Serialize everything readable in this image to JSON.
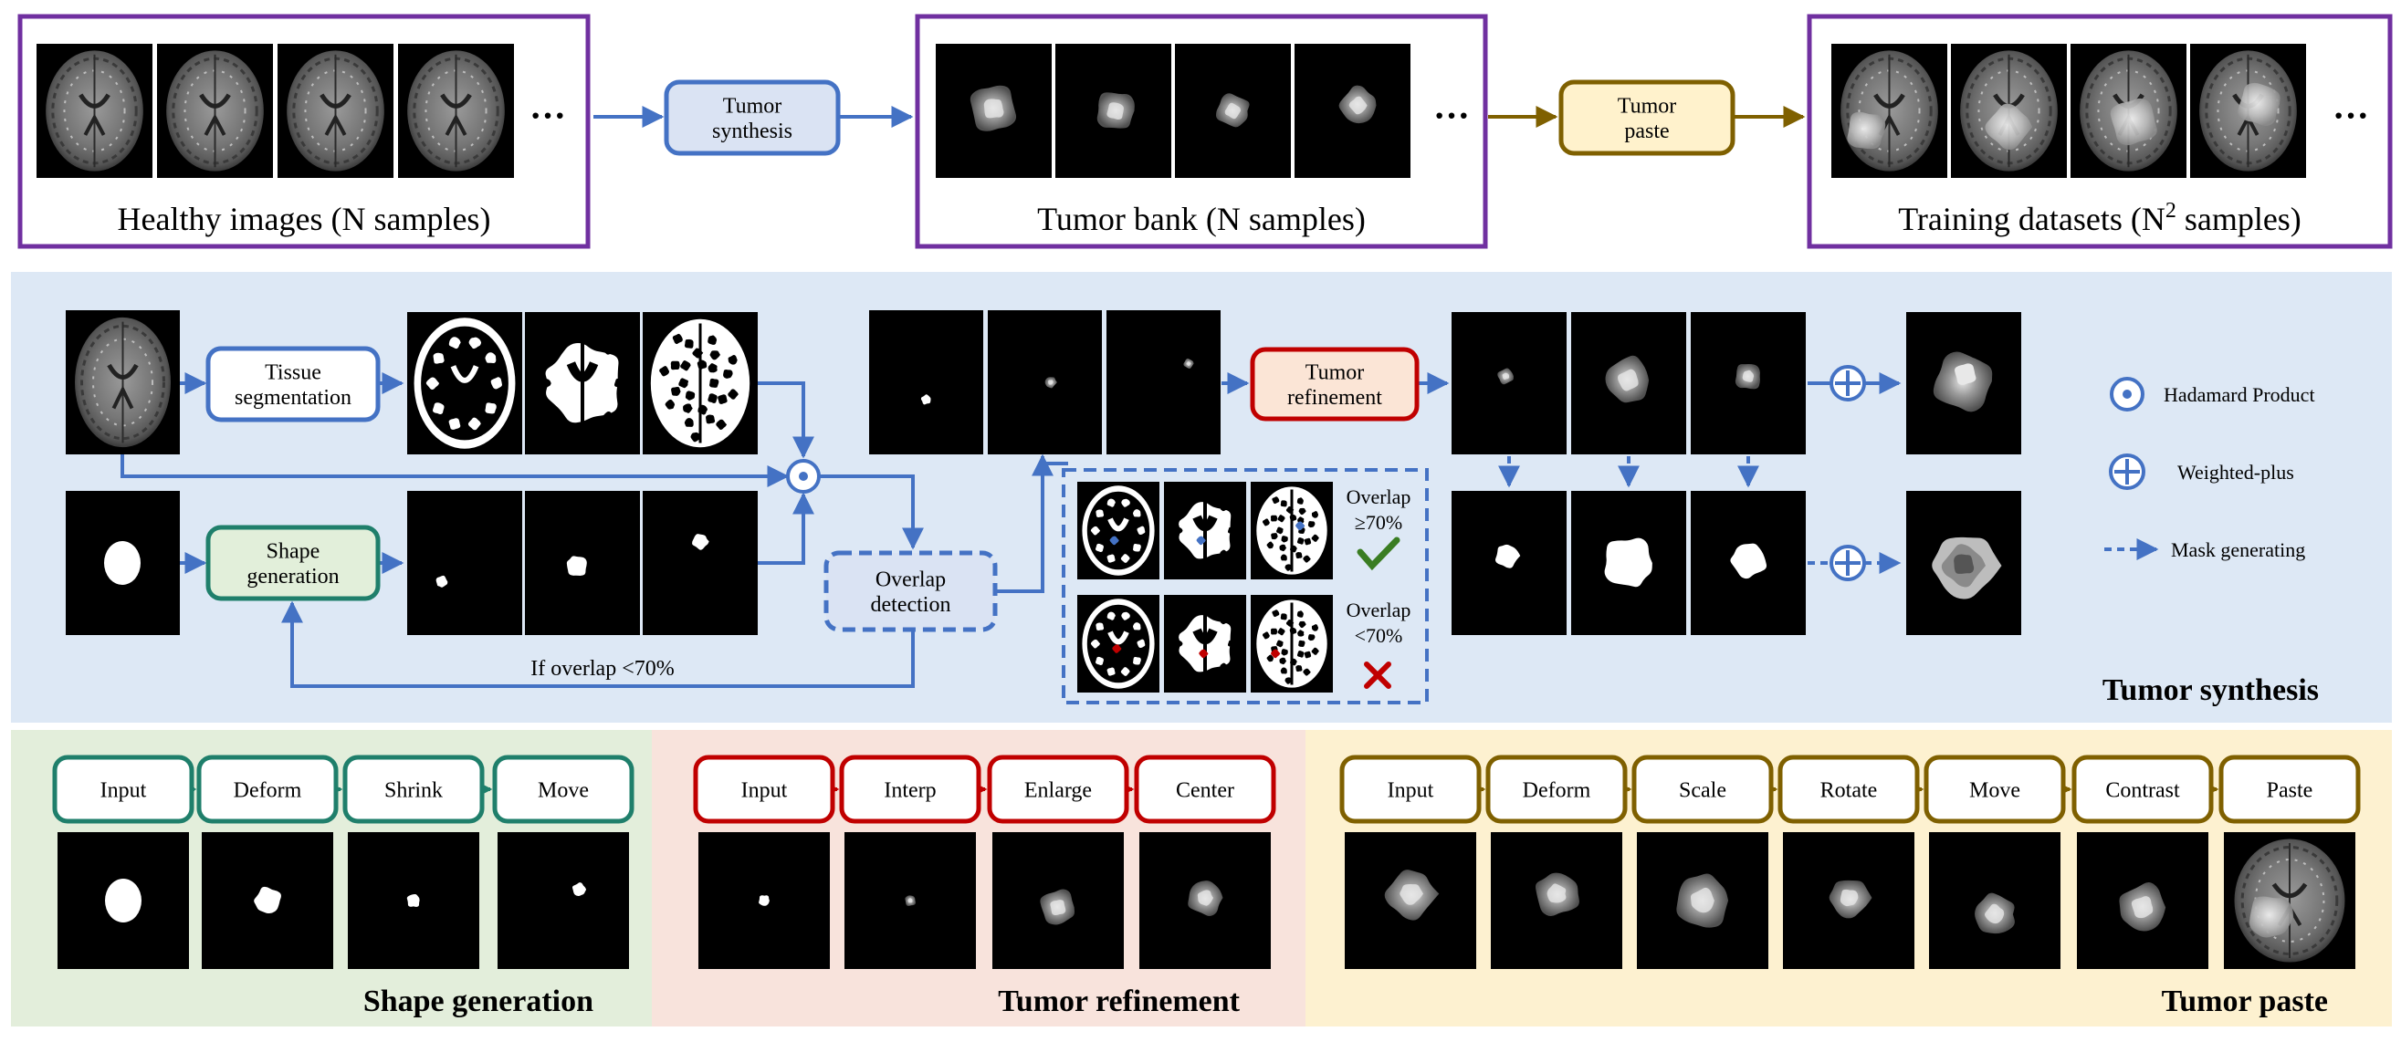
{
  "top": {
    "healthy_caption": "Healthy images (N samples)",
    "tumor_bank_caption": "Tumor bank (N samples)",
    "training_caption_prefix": "Training datasets (N",
    "training_caption_sup": "2",
    "training_caption_suffix": " samples)",
    "tumor_synthesis_box": [
      "Tumor",
      "synthesis"
    ],
    "tumor_paste_box": [
      "Tumor",
      "paste"
    ],
    "ellipsis": "···"
  },
  "synthesis": {
    "tissue_segmentation": [
      "Tissue",
      "segmentation"
    ],
    "shape_generation": [
      "Shape",
      "generation"
    ],
    "overlap_detection": [
      "Overlap",
      "detection"
    ],
    "tumor_refinement": [
      "Tumor",
      "refinement"
    ],
    "overlap_pass": [
      "Overlap",
      "≥70%"
    ],
    "overlap_fail": [
      "Overlap",
      "<70%"
    ],
    "loop_label": "If overlap <70%",
    "section_title": "Tumor synthesis"
  },
  "legend": {
    "hadamard": "Hadamard Product",
    "weighted_plus": "Weighted-plus",
    "mask_generating": "Mask generating"
  },
  "panels": {
    "shape": {
      "title": "Shape generation",
      "steps": [
        "Input",
        "Deform",
        "Shrink",
        "Move"
      ]
    },
    "refine": {
      "title": "Tumor refinement",
      "steps": [
        "Input",
        "Interp",
        "Enlarge",
        "Center"
      ]
    },
    "paste": {
      "title": "Tumor paste",
      "steps": [
        "Input",
        "Deform",
        "Scale",
        "Rotate",
        "Move",
        "Contrast",
        "Paste"
      ]
    }
  },
  "colors": {
    "purple": "#7030a0",
    "blue": "#4472c4",
    "green": "#1f7f6b",
    "red": "#c00000",
    "brown": "#7f6000",
    "synthesis_bg": "#dde8f5",
    "shape_bg": "#e3eedb",
    "refine_bg": "#f8e3dc",
    "paste_bg": "#fdf1d0",
    "tissue_fill": "#ffffff",
    "shape_fill": "#e2efda",
    "refine_fill": "#fbe5d6",
    "paste_fill": "#fff2cc",
    "check": "#3a7d22",
    "cross": "#c00000"
  }
}
